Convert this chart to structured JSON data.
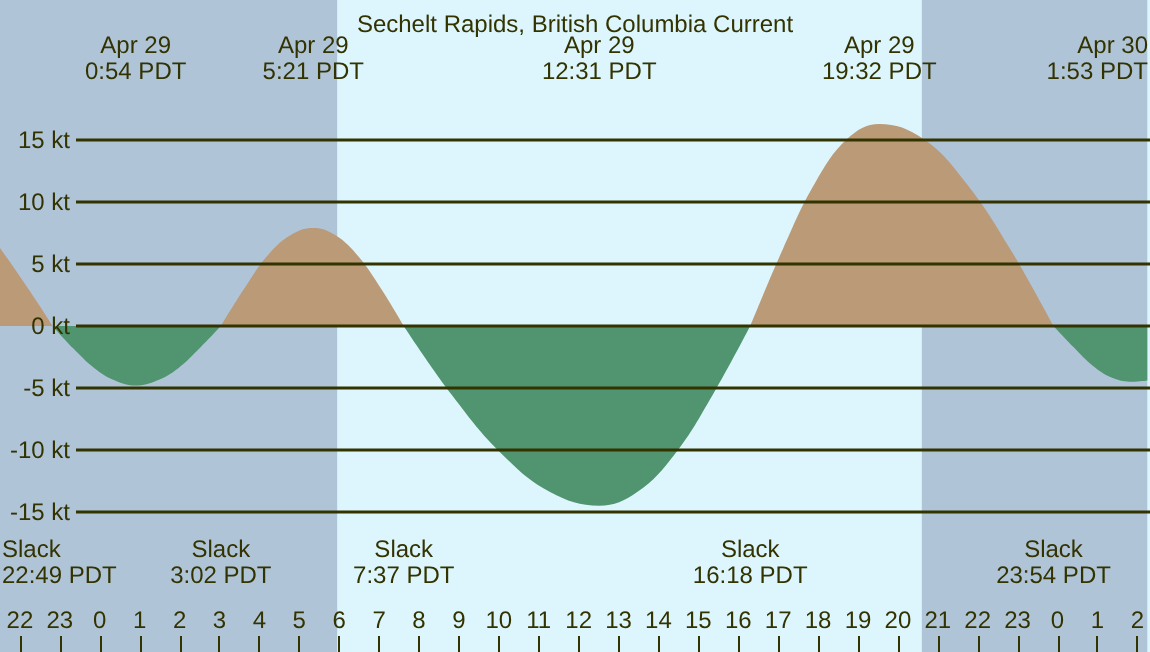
{
  "chart_data": {
    "type": "area",
    "title": "Sechelt Rapids, British Columbia Current",
    "xlim": [
      "--04-28T21:30",
      "--04-30T02:15"
    ],
    "xticks": [
      {
        "value": "--04-28T22:00",
        "label": "22"
      },
      {
        "value": "--04-28T23:00",
        "label": "23"
      },
      {
        "value": "--04-29T00:00",
        "label": "0"
      },
      {
        "value": "--04-29T01:00",
        "label": "1"
      },
      {
        "value": "--04-29T02:00",
        "label": "2"
      },
      {
        "value": "--04-29T03:00",
        "label": "3"
      },
      {
        "value": "--04-29T04:00",
        "label": "4"
      },
      {
        "value": "--04-29T05:00",
        "label": "5"
      },
      {
        "value": "--04-29T06:00",
        "label": "6"
      },
      {
        "value": "--04-29T07:00",
        "label": "7"
      },
      {
        "value": "--04-29T08:00",
        "label": "8"
      },
      {
        "value": "--04-29T09:00",
        "label": "9"
      },
      {
        "value": "--04-29T10:00",
        "label": "10"
      },
      {
        "value": "--04-29T11:00",
        "label": "11"
      },
      {
        "value": "--04-29T12:00",
        "label": "12"
      },
      {
        "value": "--04-29T13:00",
        "label": "13"
      },
      {
        "value": "--04-29T14:00",
        "label": "14"
      },
      {
        "value": "--04-29T15:00",
        "label": "15"
      },
      {
        "value": "--04-29T16:00",
        "label": "16"
      },
      {
        "value": "--04-29T17:00",
        "label": "17"
      },
      {
        "value": "--04-29T18:00",
        "label": "18"
      },
      {
        "value": "--04-29T19:00",
        "label": "19"
      },
      {
        "value": "--04-29T20:00",
        "label": "20"
      },
      {
        "value": "--04-29T21:00",
        "label": "21"
      },
      {
        "value": "--04-29T22:00",
        "label": "22"
      },
      {
        "value": "--04-29T23:00",
        "label": "23"
      },
      {
        "value": "--04-30T00:00",
        "label": "0"
      },
      {
        "value": "--04-30T01:00",
        "label": "1"
      },
      {
        "value": "--04-30T02:00",
        "label": "2"
      }
    ],
    "ylim": [
      -26.3,
      26.3
    ],
    "yticks": [
      {
        "value": -15,
        "label": "-15 kt"
      },
      {
        "value": -10,
        "label": "-10 kt"
      },
      {
        "value": -5,
        "label": "-5 kt"
      },
      {
        "value": 0,
        "label": "0 kt"
      },
      {
        "value": 5,
        "label": "5 kt"
      },
      {
        "value": 10,
        "label": "10 kt"
      },
      {
        "value": 15,
        "label": "15 kt"
      }
    ],
    "grid": "y",
    "series": [
      {
        "color": "#bb9a78",
        "x": [
          "--04-28T21:30",
          "--04-28T22:00",
          "--04-28T22:30",
          "--04-28T22:49",
          "--04-29T00:54",
          "--04-29T03:02",
          "--04-29T03:37",
          "--04-29T04:11",
          "--04-29T04:46",
          "--04-29T05:21",
          "--04-29T05:55",
          "--04-29T06:29",
          "--04-29T07:03",
          "--04-29T07:37",
          "--04-29T12:31",
          "--04-29T16:18",
          "--04-29T17:07",
          "--04-29T17:55",
          "--04-29T18:44",
          "--04-29T19:32",
          "--04-29T20:38",
          "--04-29T21:43",
          "--04-29T22:49",
          "--04-29T23:54"
        ],
        "values": [
          6.3,
          4,
          1.6,
          0,
          null,
          0,
          3,
          5.6,
          7.3,
          7.9,
          7.3,
          5.6,
          3,
          0,
          null,
          0,
          6.2,
          11.5,
          15.1,
          16.3,
          15.1,
          11.5,
          6.2,
          0
        ]
      },
      {
        "color": "#519470",
        "x": [
          "--04-28T22:49",
          "--04-28T23:20",
          "--04-28T23:52",
          "--04-29T00:23",
          "--04-29T00:54",
          "--04-29T01:26",
          "--04-29T01:58",
          "--04-29T02:30",
          "--04-29T03:02",
          "--04-29T05:21",
          "--04-29T07:37",
          "--04-29T08:50",
          "--04-29T10:04",
          "--04-29T11:17",
          "--04-29T12:31",
          "--04-29T13:28",
          "--04-29T14:25",
          "--04-29T15:21",
          "--04-29T16:18",
          "--04-29T19:32",
          "--04-29T23:54",
          "--04-30T00:24",
          "--04-30T00:53",
          "--04-30T01:23",
          "--04-30T01:53",
          "--04-30T02:15"
        ],
        "values": [
          0,
          -1.8,
          -3.4,
          -4.4,
          -4.8,
          -4.4,
          -3.4,
          -1.8,
          0,
          null,
          0,
          -5.6,
          -10.3,
          -13.4,
          -14.5,
          -13.4,
          -10.3,
          -5.6,
          0,
          null,
          0,
          -1.7,
          -3.2,
          -4.2,
          -4.5,
          -4.4
        ]
      }
    ],
    "bands": [
      {
        "axis": "x",
        "from": "--04-28T21:30",
        "to": "--04-29T05:57",
        "color": "#b0c4d8"
      },
      {
        "axis": "x",
        "from": "--04-29T20:36",
        "to": "--04-30T02:15",
        "color": "#b0c4d8"
      }
    ],
    "annotations": [
      "Apr 29\n0:54 PDT",
      "Apr 29\n5:21 PDT",
      "Apr 29\n12:31 PDT",
      "Apr 29\n19:32 PDT",
      "Apr 30\n1:53 PDT",
      "Slack\n22:49 PDT",
      "Slack\n3:02 PDT",
      "Slack\n7:37 PDT",
      "Slack\n16:18 PDT",
      "Slack\n23:54 PDT"
    ]
  }
}
